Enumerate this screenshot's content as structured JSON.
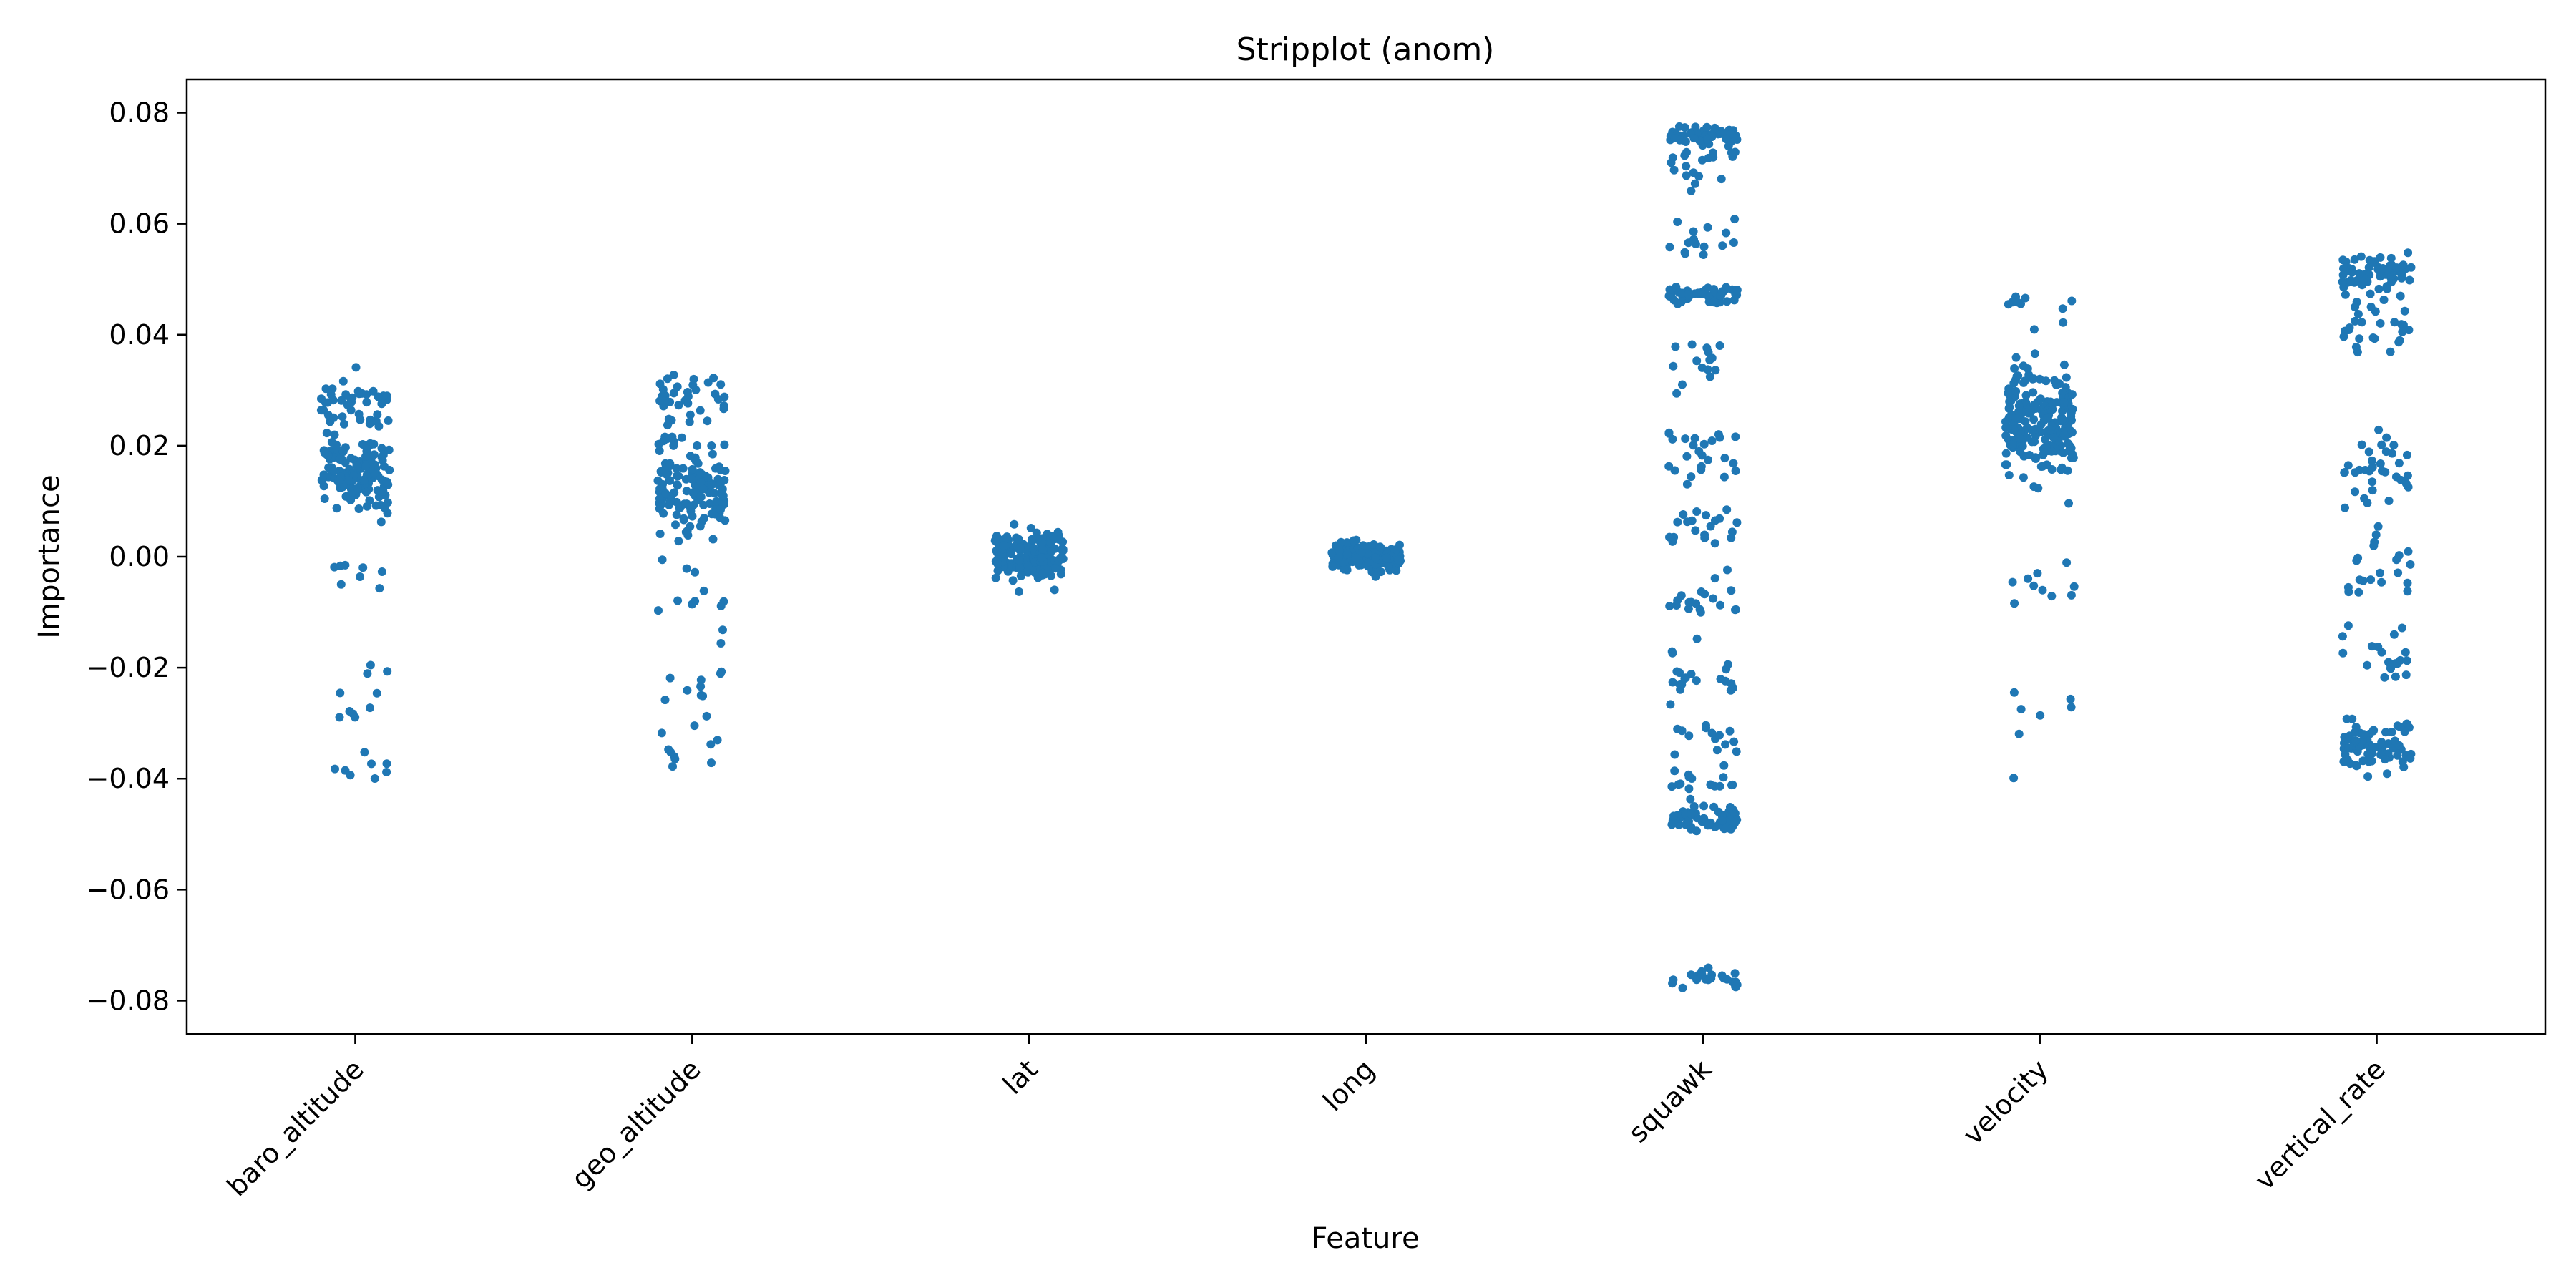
{
  "chart_data": {
    "type": "scatter",
    "subtype": "stripplot",
    "title": "Stripplot (anom)",
    "xlabel": "Feature",
    "ylabel": "Importance",
    "ylim": [
      -0.086,
      0.086
    ],
    "yticks": [
      -0.08,
      -0.06,
      -0.04,
      -0.02,
      0.0,
      0.02,
      0.04,
      0.06,
      0.08
    ],
    "ytick_labels": [
      "−0.08",
      "−0.06",
      "−0.04",
      "−0.02",
      "0.00",
      "0.02",
      "0.04",
      "0.06",
      "0.08"
    ],
    "categories": [
      "baro_altitude",
      "geo_altitude",
      "lat",
      "long",
      "squawk",
      "velocity",
      "vertical_rate"
    ],
    "grid": false,
    "legend": "none",
    "point_color": "#1f77b4",
    "series": [
      {
        "category": "baro_altitude",
        "clusters": [
          {
            "center": 0.015,
            "spread": 0.006,
            "n": 140
          },
          {
            "center": 0.028,
            "spread": 0.004,
            "n": 40
          },
          {
            "center": -0.005,
            "spread": 0.005,
            "n": 8
          },
          {
            "center": -0.025,
            "spread": 0.006,
            "n": 10
          },
          {
            "center": -0.038,
            "spread": 0.003,
            "n": 8
          }
        ],
        "min": -0.043,
        "max": 0.035
      },
      {
        "category": "geo_altitude",
        "clusters": [
          {
            "center": 0.013,
            "spread": 0.007,
            "n": 140
          },
          {
            "center": 0.029,
            "spread": 0.004,
            "n": 35
          },
          {
            "center": -0.008,
            "spread": 0.006,
            "n": 12
          },
          {
            "center": -0.024,
            "spread": 0.006,
            "n": 12
          },
          {
            "center": -0.036,
            "spread": 0.004,
            "n": 8
          }
        ],
        "min": -0.044,
        "max": 0.035
      },
      {
        "category": "lat",
        "clusters": [
          {
            "center": 0.0,
            "spread": 0.0035,
            "n": 170
          }
        ],
        "min": -0.008,
        "max": 0.006
      },
      {
        "category": "long",
        "clusters": [
          {
            "center": 0.0,
            "spread": 0.0018,
            "n": 200
          }
        ],
        "min": -0.004,
        "max": 0.004
      },
      {
        "category": "squawk",
        "clusters": [
          {
            "center": 0.076,
            "spread": 0.0015,
            "n": 60
          },
          {
            "center": 0.071,
            "spread": 0.004,
            "n": 20
          },
          {
            "center": 0.058,
            "spread": 0.004,
            "n": 15
          },
          {
            "center": 0.047,
            "spread": 0.0015,
            "n": 50
          },
          {
            "center": 0.035,
            "spread": 0.005,
            "n": 15
          },
          {
            "center": 0.019,
            "spread": 0.004,
            "n": 25
          },
          {
            "center": 0.005,
            "spread": 0.004,
            "n": 20
          },
          {
            "center": -0.008,
            "spread": 0.004,
            "n": 20
          },
          {
            "center": -0.022,
            "spread": 0.004,
            "n": 20
          },
          {
            "center": -0.034,
            "spread": 0.004,
            "n": 15
          },
          {
            "center": -0.047,
            "spread": 0.0018,
            "n": 60
          },
          {
            "center": -0.041,
            "spread": 0.002,
            "n": 15
          },
          {
            "center": -0.076,
            "spread": 0.0015,
            "n": 25
          }
        ],
        "min": -0.078,
        "max": 0.078
      },
      {
        "category": "velocity",
        "clusters": [
          {
            "center": 0.024,
            "spread": 0.008,
            "n": 210
          },
          {
            "center": 0.045,
            "spread": 0.004,
            "n": 10
          },
          {
            "center": -0.005,
            "spread": 0.004,
            "n": 10
          },
          {
            "center": -0.027,
            "spread": 0.004,
            "n": 6
          },
          {
            "center": -0.04,
            "spread": 0.0005,
            "n": 1
          }
        ],
        "min": -0.04,
        "max": 0.053
      },
      {
        "category": "vertical_rate",
        "clusters": [
          {
            "center": 0.051,
            "spread": 0.003,
            "n": 70
          },
          {
            "center": 0.042,
            "spread": 0.004,
            "n": 25
          },
          {
            "center": 0.016,
            "spread": 0.006,
            "n": 35
          },
          {
            "center": -0.003,
            "spread": 0.005,
            "n": 20
          },
          {
            "center": -0.018,
            "spread": 0.005,
            "n": 20
          },
          {
            "center": -0.034,
            "spread": 0.004,
            "n": 75
          }
        ],
        "min": -0.042,
        "max": 0.057
      }
    ]
  }
}
